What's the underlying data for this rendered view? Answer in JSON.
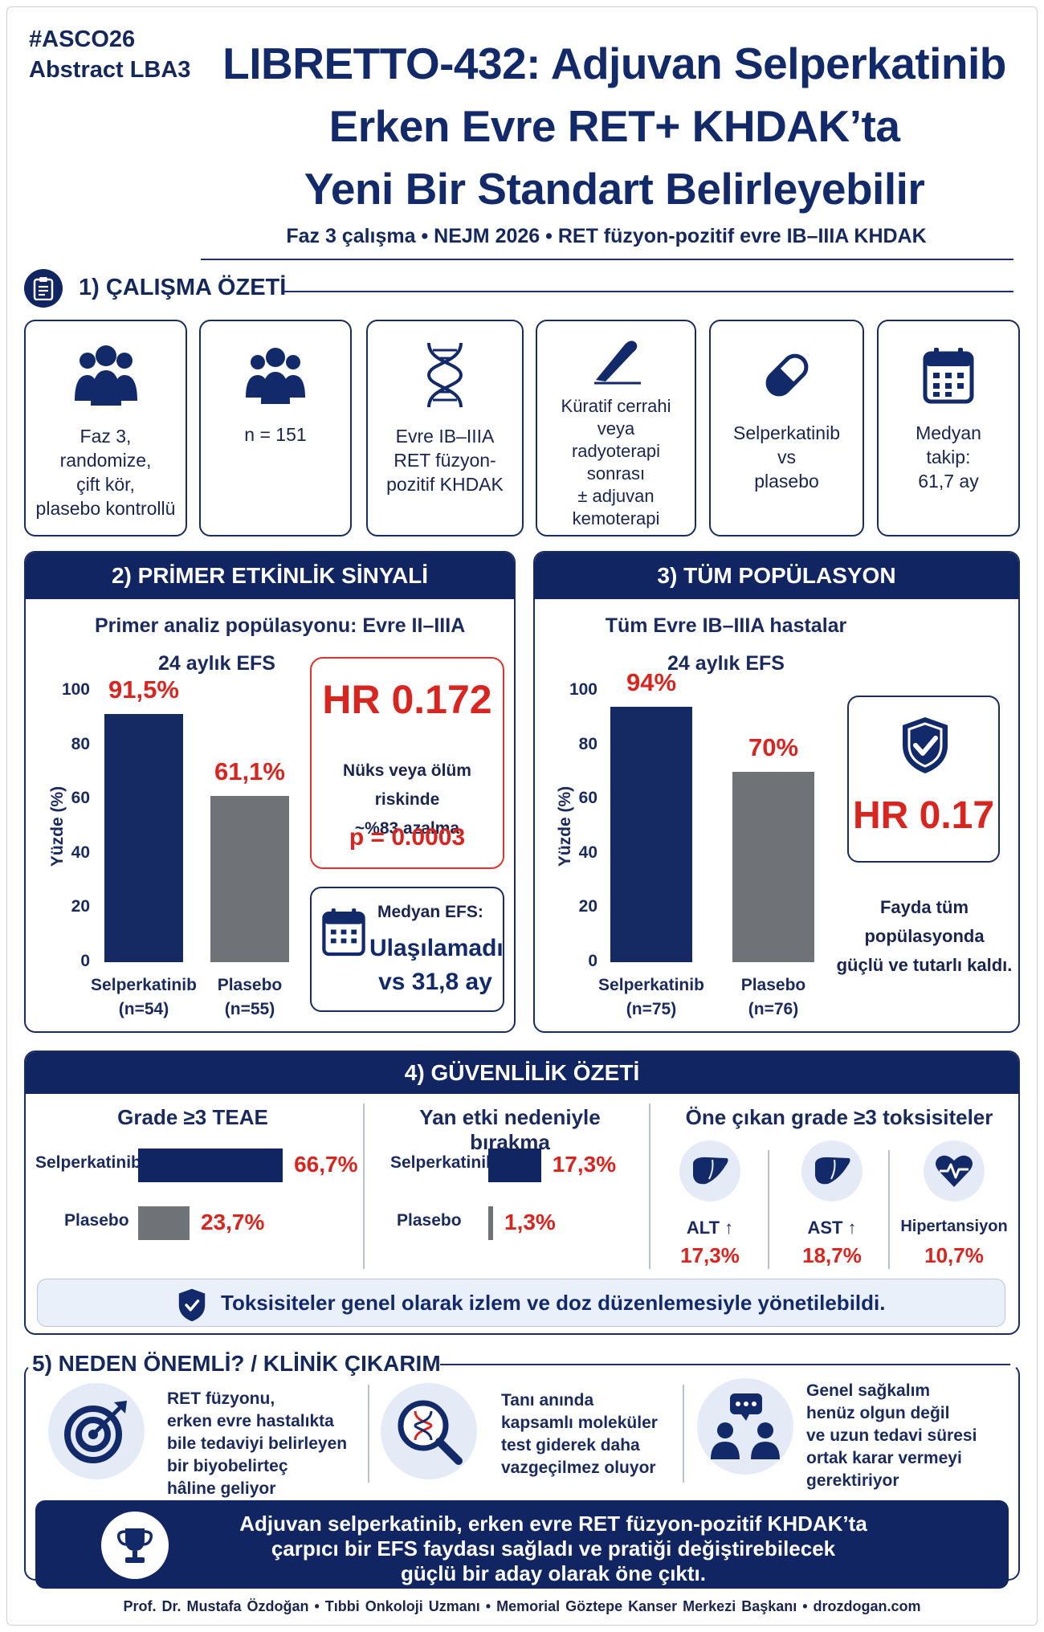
{
  "header": {
    "hashtag": "#ASCO26",
    "abstract": "Abstract LBA3",
    "title_line1": "LIBRETTO-432: Adjuvan Selperkatinib",
    "title_line2": "Erken Evre RET+ KHDAK’ta",
    "title_line3": "Yeni Bir Standart Belirleyebilir",
    "subtitle": "Faz 3 çalışma • NEJM 2026 • RET füzyon-pozitif evre IB–IIIA KHDAK"
  },
  "summary": {
    "heading": "1) ÇALIŞMA ÖZETİ",
    "cards": [
      {
        "icon": "people-icon",
        "text": "Faz 3,\nrandomize,\nçift kör,\nplasebo kontrollü"
      },
      {
        "icon": "group-icon",
        "text": "n = 151"
      },
      {
        "icon": "dna-icon",
        "text": "Evre IB–IIIA\nRET füzyon-\npozitif KHDAK"
      },
      {
        "icon": "scalpel-icon",
        "text": "Küratif cerrahi\nveya\nradyoterapi\nsonrası\n± adjuvan\nkemoterapi"
      },
      {
        "icon": "capsule-icon",
        "text": "Selperkatinib\nvs\nplasebo"
      },
      {
        "icon": "calendar-icon",
        "text": "Medyan\ntakip:\n61,7 ay"
      }
    ]
  },
  "primary": {
    "heading": "2) PRİMER ETKİNLİK SİNYALİ",
    "population": "Primer analiz popülasyonu: Evre II–IIIA",
    "endpoint": "24 aylık EFS",
    "ylabel": "Yüzde (%)",
    "hr": "HR 0.172",
    "risk_text": "Nüks veya ölüm riskinde\n~%83 azalma",
    "p_value": "p = 0.0003",
    "median_label": "Medyan EFS:",
    "median_value": "Ulaşılamadı\nvs 31,8 ay"
  },
  "overall": {
    "heading": "3) TÜM POPÜLASYON",
    "population": "Tüm Evre IB–IIIA hastalar",
    "endpoint": "24 aylık EFS",
    "ylabel": "Yüzde (%)",
    "hr": "HR 0.17",
    "note": "Fayda tüm\npopülasyonda\ngüçlü ve tutarlı kaldı."
  },
  "chart_data": [
    {
      "type": "bar",
      "title": "24 aylık EFS",
      "ylabel": "Yüzde (%)",
      "ylim": [
        0,
        100
      ],
      "yticks": [
        0,
        20,
        40,
        60,
        80,
        100
      ],
      "categories": [
        "Selperkatinib\n(n=54)",
        "Plasebo\n(n=55)"
      ],
      "values": [
        91.5,
        61.1
      ],
      "value_labels": [
        "91,5%",
        "61,1%"
      ],
      "colors": [
        "#162a62",
        "#6f7378"
      ]
    },
    {
      "type": "bar",
      "title": "24 aylık EFS",
      "ylabel": "Yüzde (%)",
      "ylim": [
        0,
        100
      ],
      "yticks": [
        0,
        20,
        40,
        60,
        80,
        100
      ],
      "categories": [
        "Selperkatinib\n(n=75)",
        "Plasebo\n(n=76)"
      ],
      "values": [
        94,
        70
      ],
      "value_labels": [
        "94%",
        "70%"
      ],
      "colors": [
        "#162a62",
        "#6f7378"
      ]
    }
  ],
  "safety": {
    "heading": "4) GÜVENLİLİK ÖZETİ",
    "teae_title": "Grade ≥3 TEAE",
    "disc_title": "Yan etki nedeniyle bırakma",
    "tox_title": "Öne çıkan grade ≥3 toksisiteler",
    "teae": [
      {
        "label": "Selperkatinib",
        "value": 66.7,
        "text": "66,7%"
      },
      {
        "label": "Plasebo",
        "value": 23.7,
        "text": "23,7%"
      }
    ],
    "discontinuation": [
      {
        "label": "Selperkatinib",
        "value": 17.3,
        "text": "17,3%"
      },
      {
        "label": "Plasebo",
        "value": 1.3,
        "text": "1,3%"
      }
    ],
    "toxicities": [
      {
        "name": "ALT ↑",
        "value": "17,3%",
        "icon": "liver-icon"
      },
      {
        "name": "AST ↑",
        "value": "18,7%",
        "icon": "liver-icon"
      },
      {
        "name": "Hipertansiyon",
        "value": "10,7%",
        "icon": "heart-pulse-icon"
      }
    ],
    "banner": "Toksisiteler genel olarak izlem ve doz düzenlemesiyle yönetilebildi."
  },
  "importance": {
    "heading": "5) NEDEN ÖNEMLİ? / KLİNİK ÇIKARIM",
    "items": [
      {
        "icon": "target-icon",
        "text": "RET füzyonu,\nerken evre hastalıkta\nbile tedaviyi belirleyen\nbir biyobelirteç\nhâline geliyor"
      },
      {
        "icon": "magnifier-dna-icon",
        "text": "Tanı anında\nkapsamlı moleküler\ntest giderek daha\nvazgeçilmez oluyor"
      },
      {
        "icon": "discussion-icon",
        "text": "Genel sağkalım\nhenüz olgun değil\nve uzun tedavi süresi\nortak karar vermeyi\ngerektiriyor"
      }
    ],
    "conclusion": "Adjuvan selperkatinib, erken evre RET füzyon-pozitif KHDAK’ta\nçarpıcı bir EFS faydası sağladı ve pratiği değiştirebilecek\ngüçlü bir aday olarak öne çıktı."
  },
  "footer": "Prof. Dr. Mustafa Özdoğan • Tıbbi Onkoloji Uzmanı • Memorial Göztepe Kanser Merkezi Başkanı • drozdogan.com"
}
